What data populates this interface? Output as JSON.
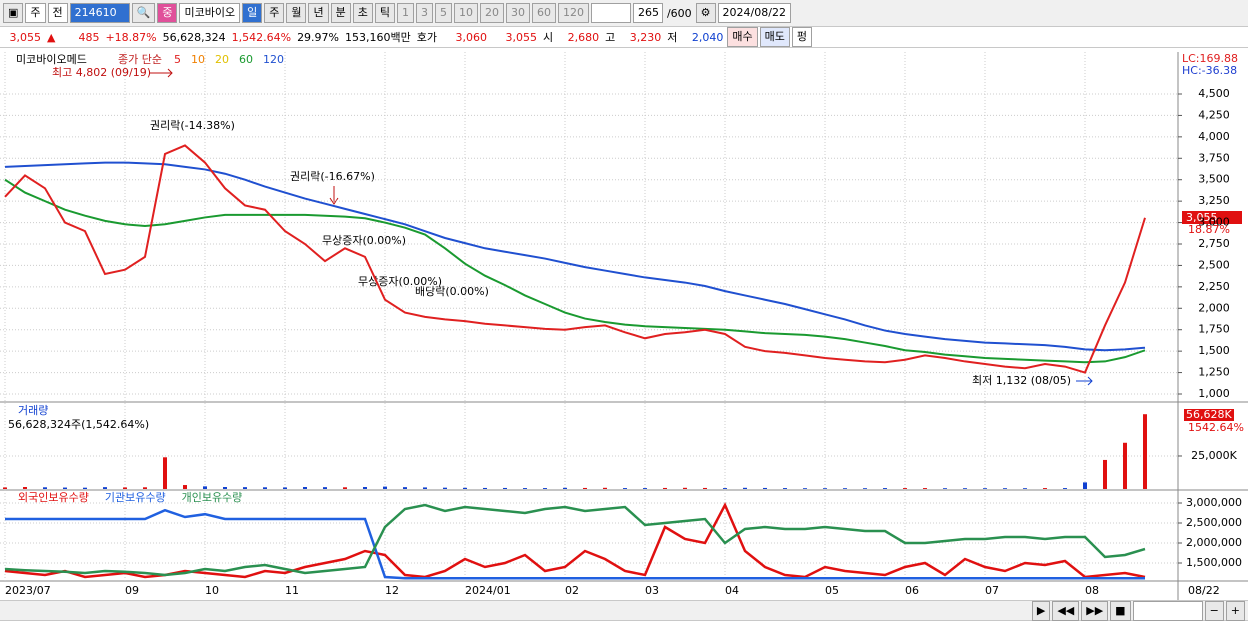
{
  "toolbar": {
    "items": [
      "주",
      "전",
      "214610",
      "중",
      "미코바이오",
      "일",
      "주",
      "월",
      "년",
      "분",
      "초",
      "틱",
      "1",
      "3",
      "5",
      "10",
      "20",
      "30",
      "60",
      "120"
    ],
    "count": "265",
    "count_max": "/600",
    "date": "2024/08/22"
  },
  "info_bar": {
    "price": "3,055",
    "arrow": "▲",
    "change": "485",
    "change_pct": "+18.87%",
    "volume": "56,628,324",
    "volume_pct": "1,542.64%",
    "turnover": "29.97%",
    "amount": "153,160백만",
    "quote_label": "호가",
    "ask": "3,060",
    "bid": "3,055",
    "open_label": "시",
    "open": "2,680",
    "high_label": "고",
    "high": "3,230",
    "low_label": "저",
    "low": "2,040",
    "buy": "매수",
    "sell": "매도",
    "flat": "펑"
  },
  "x_axis": {
    "categories": [
      "2023/07",
      null,
      null,
      null,
      null,
      null,
      "09",
      null,
      null,
      null,
      "10",
      null,
      null,
      null,
      "11",
      null,
      null,
      null,
      null,
      "12",
      null,
      null,
      null,
      "2024/01",
      null,
      null,
      null,
      null,
      "02",
      null,
      null,
      null,
      "03",
      null,
      null,
      null,
      "04",
      null,
      null,
      null,
      null,
      "05",
      null,
      null,
      null,
      "06",
      null,
      null,
      null,
      "07",
      null,
      null,
      null,
      null,
      "08",
      null,
      null,
      null
    ],
    "last_date": "08/22"
  },
  "price_panel": {
    "name": "미코바이오메드",
    "ma_label": "종가 단순",
    "ma_periods": [
      {
        "label": "5",
        "color": "#e02020"
      },
      {
        "label": "10",
        "color": "#f08000"
      },
      {
        "label": "20",
        "color": "#e0c000"
      },
      {
        "label": "60",
        "color": "#1a9a30"
      },
      {
        "label": "120",
        "color": "#2050d0"
      }
    ],
    "lc": "LC:169.88",
    "hc": "HC:-36.38",
    "last_price": "3,055",
    "last_pct": "18.87%",
    "ylim": [
      930,
      4990
    ],
    "yticks": [
      {
        "value": 1000,
        "label": "1,000"
      },
      {
        "value": 1250,
        "label": "1,250"
      },
      {
        "value": 1500,
        "label": "1,500"
      },
      {
        "value": 1750,
        "label": "1,750"
      },
      {
        "value": 2000,
        "label": "2,000"
      },
      {
        "value": 2250,
        "label": "2,250"
      },
      {
        "value": 2500,
        "label": "2,500"
      },
      {
        "value": 2750,
        "label": "2,750"
      },
      {
        "value": 3000,
        "label": "3,000"
      },
      {
        "value": 3250,
        "label": "3,250"
      },
      {
        "value": 3500,
        "label": "3,500"
      },
      {
        "value": 3750,
        "label": "3,750"
      },
      {
        "value": 4000,
        "label": "4,000"
      },
      {
        "value": 4250,
        "label": "4,250"
      },
      {
        "value": 4500,
        "label": "4,500"
      }
    ],
    "series": [
      {
        "color": "#2050d0",
        "values": [
          3650,
          3660,
          3670,
          3680,
          3690,
          3700,
          3700,
          3690,
          3680,
          3650,
          3620,
          3570,
          3500,
          3420,
          3350,
          3280,
          3220,
          3160,
          3100,
          3040,
          2980,
          2900,
          2820,
          2760,
          2700,
          2660,
          2620,
          2580,
          2530,
          2480,
          2440,
          2400,
          2360,
          2330,
          2300,
          2260,
          2200,
          2150,
          2100,
          2050,
          1990,
          1930,
          1870,
          1800,
          1740,
          1700,
          1670,
          1640,
          1620,
          1600,
          1590,
          1580,
          1570,
          1550,
          1520,
          1510,
          1520,
          1540
        ]
      },
      {
        "color": "#1a9a30",
        "values": [
          3500,
          3350,
          3250,
          3150,
          3080,
          3020,
          2980,
          2960,
          2980,
          3020,
          3060,
          3090,
          3090,
          3090,
          3090,
          3090,
          3080,
          3070,
          3050,
          3000,
          2940,
          2860,
          2700,
          2520,
          2380,
          2270,
          2150,
          2050,
          1950,
          1880,
          1840,
          1810,
          1790,
          1780,
          1770,
          1760,
          1750,
          1730,
          1710,
          1700,
          1690,
          1670,
          1640,
          1600,
          1560,
          1510,
          1490,
          1460,
          1440,
          1420,
          1410,
          1400,
          1390,
          1380,
          1370,
          1380,
          1430,
          1510
        ]
      },
      {
        "color": "#e02020",
        "values": [
          3300,
          3550,
          3400,
          3000,
          2900,
          2400,
          2450,
          2600,
          3800,
          3900,
          3700,
          3400,
          3200,
          3150,
          2900,
          2750,
          2550,
          2700,
          2600,
          2100,
          1950,
          1900,
          1870,
          1850,
          1820,
          1800,
          1780,
          1760,
          1750,
          1780,
          1800,
          1720,
          1650,
          1700,
          1720,
          1750,
          1700,
          1550,
          1500,
          1480,
          1450,
          1420,
          1400,
          1380,
          1370,
          1400,
          1450,
          1420,
          1380,
          1350,
          1320,
          1300,
          1350,
          1320,
          1250,
          1800,
          2300,
          3055
        ]
      }
    ],
    "annotations": {
      "high": "최고 4,802 (09/19)",
      "rights1": "권리락(-14.38%)",
      "rights2": "권리락(-16.67%)",
      "bonus1": "무상증자(0.00%)",
      "bonus2": "무상증자(0.00%)",
      "dividend": "배당락(0.00%)",
      "low": "최저 1,132 (08/05)"
    }
  },
  "volume_panel": {
    "title": "거래량",
    "summary": "56,628,324주(1,542.64%)",
    "last": "56,628K",
    "last_pct": "1542.64%",
    "ylim": [
      0,
      63600
    ],
    "yticks": [
      {
        "value": 25000,
        "label": "25,000K"
      }
    ],
    "values": [
      1200,
      1500,
      1300,
      1100,
      1000,
      1400,
      1200,
      1300,
      24000,
      3000,
      2000,
      1500,
      1400,
      1300,
      1200,
      1500,
      1400,
      1300,
      1500,
      1800,
      1400,
      1200,
      1000,
      900,
      800,
      800,
      700,
      700,
      900,
      800,
      900,
      700,
      700,
      800,
      900,
      800,
      700,
      900,
      800,
      700,
      600,
      600,
      600,
      600,
      700,
      700,
      700,
      600,
      600,
      600,
      600,
      600,
      700,
      700,
      5000,
      22000,
      35000,
      56628
    ]
  },
  "holdings_panel": {
    "ylim": [
      1075000,
      3275000
    ],
    "yticks": [
      {
        "value": 1500000,
        "label": "1,500,000"
      },
      {
        "value": 2000000,
        "label": "2,000,000"
      },
      {
        "value": 2500000,
        "label": "2,500,000"
      },
      {
        "value": 3000000,
        "label": "3,000,000"
      }
    ],
    "series": [
      {
        "name": "외국인보유수량",
        "color": "#e01010",
        "values": [
          1300000,
          1250000,
          1200000,
          1300000,
          1150000,
          1200000,
          1250000,
          1150000,
          1200000,
          1300000,
          1250000,
          1200000,
          1150000,
          1300000,
          1250000,
          1400000,
          1500000,
          1600000,
          1800000,
          1700000,
          1200000,
          1150000,
          1300000,
          1600000,
          1400000,
          1500000,
          1700000,
          1300000,
          1400000,
          1800000,
          1600000,
          1300000,
          1200000,
          2400000,
          2100000,
          2000000,
          2950000,
          1800000,
          1400000,
          1200000,
          1150000,
          1400000,
          1300000,
          1250000,
          1200000,
          1400000,
          1500000,
          1200000,
          1600000,
          1400000,
          1300000,
          1500000,
          1450000,
          1550000,
          1150000,
          1200000,
          1250000,
          1150000
        ]
      },
      {
        "name": "기관보유수량",
        "color": "#2060e0",
        "values": [
          2600000,
          2600000,
          2600000,
          2600000,
          2600000,
          2600000,
          2600000,
          2600000,
          2820000,
          2650000,
          2720000,
          2600000,
          2600000,
          2600000,
          2600000,
          2600000,
          2600000,
          2600000,
          2600000,
          1150000,
          1120000,
          1120000,
          1120000,
          1120000,
          1120000,
          1120000,
          1120000,
          1120000,
          1120000,
          1120000,
          1120000,
          1120000,
          1120000,
          1120000,
          1120000,
          1120000,
          1120000,
          1120000,
          1120000,
          1120000,
          1120000,
          1120000,
          1120000,
          1120000,
          1120000,
          1120000,
          1120000,
          1120000,
          1120000,
          1120000,
          1120000,
          1120000,
          1120000,
          1120000,
          1120000,
          1120000,
          1120000,
          1120000
        ]
      },
      {
        "name": "개인보유수량",
        "color": "#2a9050",
        "values": [
          1350000,
          1320000,
          1300000,
          1280000,
          1250000,
          1300000,
          1280000,
          1250000,
          1200000,
          1250000,
          1350000,
          1300000,
          1400000,
          1450000,
          1350000,
          1250000,
          1300000,
          1350000,
          1400000,
          2400000,
          2850000,
          2950000,
          2800000,
          2900000,
          2850000,
          2800000,
          2750000,
          2850000,
          2900000,
          2800000,
          2850000,
          2900000,
          2450000,
          2500000,
          2550000,
          2600000,
          2000000,
          2350000,
          2400000,
          2350000,
          2350000,
          2400000,
          2350000,
          2300000,
          2300000,
          2000000,
          2000000,
          2050000,
          2100000,
          2100000,
          2150000,
          2150000,
          2100000,
          2150000,
          2150000,
          1650000,
          1700000,
          1850000
        ]
      }
    ]
  }
}
